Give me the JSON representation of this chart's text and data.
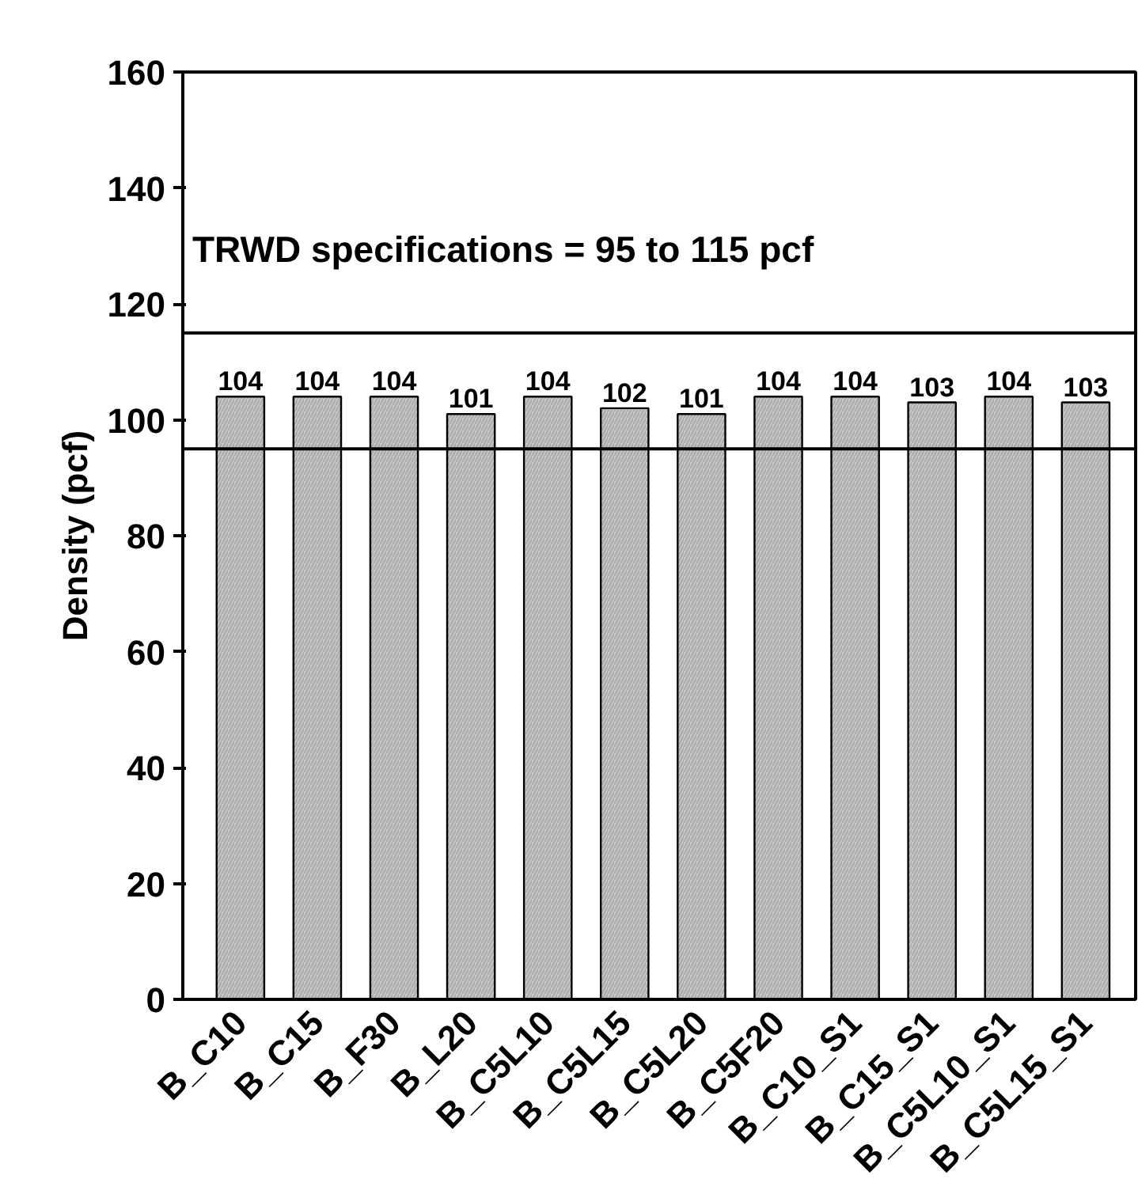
{
  "chart_data": {
    "type": "bar",
    "ylabel": "Density (pcf)",
    "categories": [
      "B_C10",
      "B_C15",
      "B_F30",
      "B_L20",
      "B_C5L10",
      "B_C5L15",
      "B_C5L20",
      "B_C5F20",
      "B_C10_S1",
      "B_C15_S1",
      "B_C5L10_S1",
      "B_C5L15_S1"
    ],
    "values": [
      104,
      104,
      104,
      101,
      104,
      102,
      101,
      104,
      104,
      103,
      104,
      103
    ],
    "color": "#c8c8c8",
    "data_labels": true,
    "ylim": [
      0,
      160
    ],
    "yticks": [
      0,
      20,
      40,
      60,
      80,
      100,
      120,
      140,
      160
    ],
    "grid": false,
    "ref_lines": [
      {
        "axis": "y",
        "value": 95
      },
      {
        "axis": "y",
        "value": 115,
        "label": "TRWD specifications = 95 to 115 pcf"
      }
    ]
  }
}
